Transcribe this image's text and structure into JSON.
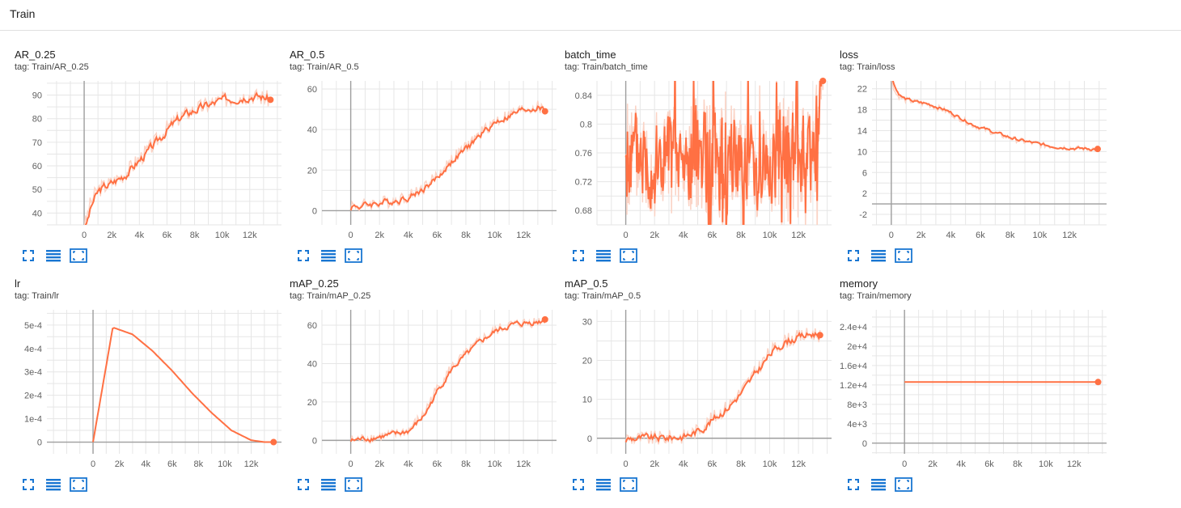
{
  "header": {
    "title": "Train"
  },
  "colors": {
    "accent": "#ff7043",
    "raw": "#fbd3c5",
    "axis": "#9e9e9e",
    "grid": "#e6e6e6",
    "button": "#1976d2"
  },
  "charts": [
    {
      "title": "AR_0.25",
      "tag": "tag: Train/AR_0.25",
      "chart_data": {
        "type": "line",
        "ylog": false,
        "noise": 2.2,
        "xlim": [
          -2700,
          14300
        ],
        "ylim": [
          35,
          96
        ],
        "xticks": [
          0,
          2000,
          4000,
          6000,
          8000,
          10000,
          12000
        ],
        "xtick_labels": [
          "0",
          "2k",
          "4k",
          "6k",
          "8k",
          "10k",
          "12k"
        ],
        "yticks": [
          40,
          50,
          60,
          70,
          80,
          90
        ],
        "ytick_labels": [
          "40",
          "50",
          "60",
          "70",
          "80",
          "90"
        ],
        "x": [
          0,
          500,
          1000,
          2000,
          3000,
          4000,
          5000,
          6000,
          7000,
          8000,
          9000,
          10000,
          11000,
          12000,
          13000,
          13500
        ],
        "y": [
          34,
          45,
          50,
          53,
          57,
          63,
          69,
          76,
          81,
          84,
          86,
          88,
          89,
          90,
          89,
          88
        ]
      }
    },
    {
      "title": "AR_0.5",
      "tag": "tag: Train/AR_0.5",
      "chart_data": {
        "type": "line",
        "ylog": false,
        "noise": 2.0,
        "xlim": [
          -2000,
          14300
        ],
        "ylim": [
          -7,
          64
        ],
        "xticks": [
          0,
          2000,
          4000,
          6000,
          8000,
          10000,
          12000
        ],
        "xtick_labels": [
          "0",
          "2k",
          "4k",
          "6k",
          "8k",
          "10k",
          "12k"
        ],
        "yticks": [
          0,
          20,
          40,
          60
        ],
        "ytick_labels": [
          "0",
          "20",
          "40",
          "60"
        ],
        "x": [
          0,
          500,
          1000,
          2000,
          3000,
          4000,
          5000,
          6000,
          7000,
          8000,
          9000,
          10000,
          11000,
          12000,
          13000,
          13500
        ],
        "y": [
          3,
          2,
          3,
          4,
          5,
          7,
          11,
          17,
          25,
          31,
          38,
          44,
          47,
          50,
          51,
          49
        ]
      }
    },
    {
      "title": "batch_time",
      "tag": "tag: Train/batch_time",
      "chart_data": {
        "type": "line",
        "ylog": false,
        "noise": 0.05,
        "xlim": [
          -2000,
          14300
        ],
        "ylim": [
          0.66,
          0.86
        ],
        "xticks": [
          0,
          2000,
          4000,
          6000,
          8000,
          10000,
          12000
        ],
        "xtick_labels": [
          "0",
          "2k",
          "4k",
          "6k",
          "8k",
          "10k",
          "12k"
        ],
        "yticks": [
          0.68,
          0.72,
          0.76,
          0.8,
          0.84
        ],
        "ytick_labels": [
          "0.68",
          "0.72",
          "0.76",
          "0.8",
          "0.84"
        ],
        "x": [
          0,
          1000,
          2000,
          3000,
          4000,
          5000,
          6000,
          7000,
          8000,
          9000,
          10000,
          11000,
          12000,
          13000,
          13700
        ],
        "y": [
          0.75,
          0.76,
          0.74,
          0.75,
          0.74,
          0.76,
          0.75,
          0.74,
          0.76,
          0.75,
          0.74,
          0.76,
          0.75,
          0.76,
          0.86
        ]
      }
    },
    {
      "title": "loss",
      "tag": "tag: Train/loss",
      "chart_data": {
        "type": "line",
        "ylog": false,
        "noise": 0.35,
        "xlim": [
          -1300,
          14500
        ],
        "ylim": [
          -4,
          23.5
        ],
        "xticks": [
          0,
          2000,
          4000,
          6000,
          8000,
          10000,
          12000
        ],
        "xtick_labels": [
          "0",
          "2k",
          "4k",
          "6k",
          "8k",
          "10k",
          "12k"
        ],
        "yticks": [
          -2,
          2,
          6,
          10,
          14,
          18,
          22
        ],
        "ytick_labels": [
          "-2",
          "2",
          "6",
          "10",
          "14",
          "18",
          "22"
        ],
        "x": [
          0,
          300,
          800,
          1500,
          2500,
          3500,
          4500,
          5500,
          6500,
          7500,
          8500,
          9500,
          10500,
          11500,
          12500,
          13500,
          13900
        ],
        "y": [
          24,
          21,
          20,
          19.5,
          19,
          18,
          16.5,
          15,
          14,
          13,
          12.2,
          11.6,
          11.1,
          10.8,
          10.6,
          10.5,
          10.5
        ]
      }
    },
    {
      "title": "lr",
      "tag": "tag: Train/lr",
      "chart_data": {
        "type": "line",
        "ylog": false,
        "noise": 0,
        "xlim": [
          -3500,
          14300
        ],
        "ylim": [
          -5e-05,
          0.000565
        ],
        "xticks": [
          0,
          2000,
          4000,
          6000,
          8000,
          10000,
          12000
        ],
        "xtick_labels": [
          "0",
          "2k",
          "4k",
          "6k",
          "8k",
          "10k",
          "12k"
        ],
        "yticks": [
          0,
          0.0001,
          0.0002,
          0.0003,
          0.0004,
          0.0005
        ],
        "ytick_labels": [
          "0",
          "1e-4",
          "2e-4",
          "3e-4",
          "4e-4",
          "5e-4"
        ],
        "x": [
          0,
          1500,
          3000,
          4500,
          6000,
          7500,
          9000,
          10500,
          12000,
          13000,
          13700
        ],
        "y": [
          0,
          0.00049,
          0.00046,
          0.00039,
          0.000305,
          0.00021,
          0.000125,
          5e-05,
          8e-06,
          0,
          0
        ]
      }
    },
    {
      "title": "mAP_0.25",
      "tag": "tag: Train/mAP_0.25",
      "chart_data": {
        "type": "line",
        "ylog": false,
        "noise": 1.8,
        "xlim": [
          -2000,
          14300
        ],
        "ylim": [
          -7,
          68
        ],
        "xticks": [
          0,
          2000,
          4000,
          6000,
          8000,
          10000,
          12000
        ],
        "xtick_labels": [
          "0",
          "2k",
          "4k",
          "6k",
          "8k",
          "10k",
          "12k"
        ],
        "yticks": [
          0,
          20,
          40,
          60
        ],
        "ytick_labels": [
          "0",
          "20",
          "40",
          "60"
        ],
        "x": [
          0,
          1000,
          2000,
          3000,
          4000,
          5000,
          6000,
          7000,
          8000,
          9000,
          10000,
          11000,
          12000,
          13000,
          13500
        ],
        "y": [
          0,
          1,
          2,
          3,
          5,
          13,
          27,
          38,
          45,
          52,
          57,
          60,
          61,
          62,
          63
        ]
      }
    },
    {
      "title": "mAP_0.5",
      "tag": "tag: Train/mAP_0.5",
      "chart_data": {
        "type": "line",
        "ylog": false,
        "noise": 1.2,
        "xlim": [
          -2000,
          14300
        ],
        "ylim": [
          -4,
          33
        ],
        "xticks": [
          0,
          2000,
          4000,
          6000,
          8000,
          10000,
          12000
        ],
        "xtick_labels": [
          "0",
          "2k",
          "4k",
          "6k",
          "8k",
          "10k",
          "12k"
        ],
        "yticks": [
          0,
          10,
          20,
          30
        ],
        "ytick_labels": [
          "0",
          "10",
          "20",
          "30"
        ],
        "x": [
          0,
          1000,
          2000,
          3000,
          4000,
          5000,
          6000,
          7000,
          8000,
          9000,
          10000,
          11000,
          12000,
          13000,
          13500
        ],
        "y": [
          0,
          0,
          0,
          0.2,
          0.5,
          2,
          5,
          8,
          12,
          17,
          22,
          25,
          26,
          27,
          26.5
        ]
      }
    },
    {
      "title": "memory",
      "tag": "tag: Train/memory",
      "chart_data": {
        "type": "line",
        "ylog": false,
        "noise": 0,
        "xlim": [
          -2300,
          14300
        ],
        "ylim": [
          -2200,
          27500
        ],
        "xticks": [
          0,
          2000,
          4000,
          6000,
          8000,
          10000,
          12000
        ],
        "xtick_labels": [
          "0",
          "2k",
          "4k",
          "6k",
          "8k",
          "10k",
          "12k"
        ],
        "yticks": [
          0,
          4000,
          8000,
          12000,
          16000,
          20000,
          24000
        ],
        "ytick_labels": [
          "0",
          "4e+3",
          "8e+3",
          "1.2e+4",
          "1.6e+4",
          "2e+4",
          "2.4e+4"
        ],
        "x": [
          0,
          13700
        ],
        "y": [
          12600,
          12600
        ]
      }
    }
  ]
}
